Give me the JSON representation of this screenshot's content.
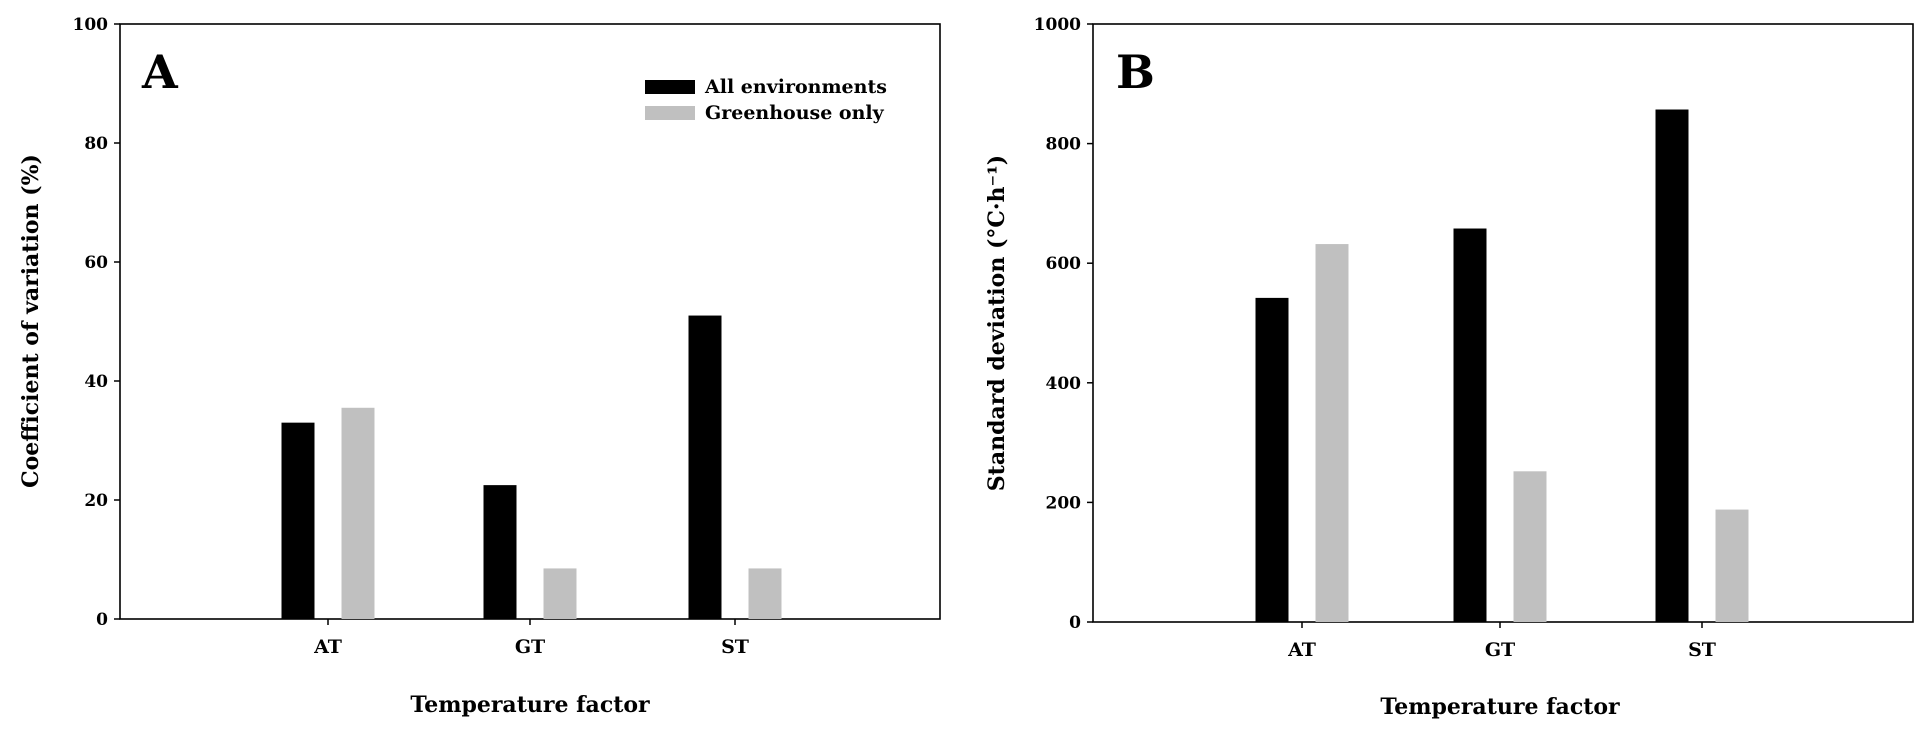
{
  "colors": {
    "all_environments": "#000000",
    "greenhouse_only": "#c0c0c0"
  },
  "chart_data": [
    {
      "type": "bar",
      "panel": "A",
      "categories": [
        "AT",
        "GT",
        "ST"
      ],
      "series": [
        {
          "name": "All environments",
          "values": [
            33,
            22.5,
            51
          ]
        },
        {
          "name": "Greenhouse only",
          "values": [
            35.5,
            8.5,
            8.5
          ]
        }
      ],
      "title": "",
      "xlabel": "Temperature factor",
      "ylabel": "Coefficient of variation (%)",
      "ylim": [
        0,
        100
      ],
      "yticks": [
        "0",
        "20",
        "40",
        "60",
        "80",
        "100"
      ],
      "grid": false,
      "legend_position": "top-right"
    },
    {
      "type": "bar",
      "panel": "B",
      "categories": [
        "AT",
        "GT",
        "ST"
      ],
      "series": [
        {
          "name": "All environments",
          "values": [
            542,
            658,
            857
          ]
        },
        {
          "name": "Greenhouse only",
          "values": [
            632,
            252,
            188
          ]
        }
      ],
      "title": "",
      "xlabel": "Temperature factor",
      "ylabel": "Standard deviation (°C·h⁻¹)",
      "ylim": [
        0,
        1000
      ],
      "yticks": [
        "0",
        "200",
        "400",
        "600",
        "800",
        "1000"
      ],
      "grid": false,
      "legend_position": "none"
    }
  ]
}
